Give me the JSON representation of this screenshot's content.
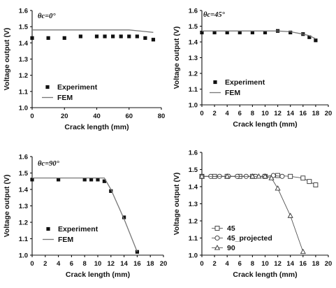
{
  "chart_data": [
    {
      "type": "scatter",
      "annotation": "θc=0°",
      "xlabel": "Crack length (mm)",
      "ylabel": "Voltage output (V)",
      "xlim": [
        0,
        80
      ],
      "ylim": [
        1.0,
        1.6
      ],
      "xticks": [
        0,
        20,
        40,
        60,
        80
      ],
      "yticks": [
        1.0,
        1.1,
        1.2,
        1.3,
        1.4,
        1.5,
        1.6
      ],
      "legend_position": "lower-left",
      "series": [
        {
          "name": "Experiment",
          "kind": "points",
          "marker": "filled-square",
          "x": [
            0,
            10,
            20,
            30,
            40,
            45,
            50,
            55,
            60,
            65,
            70,
            75
          ],
          "y": [
            1.43,
            1.43,
            1.43,
            1.44,
            1.44,
            1.44,
            1.44,
            1.44,
            1.44,
            1.44,
            1.43,
            1.42
          ]
        },
        {
          "name": "FEM",
          "kind": "line",
          "x": [
            0,
            20,
            40,
            60,
            70,
            75
          ],
          "y": [
            1.48,
            1.48,
            1.48,
            1.48,
            1.47,
            1.465
          ]
        }
      ]
    },
    {
      "type": "scatter",
      "annotation": "θc=45°",
      "xlabel": "Crack length (mm)",
      "ylabel": "Voltage output (V)",
      "xlim": [
        0,
        20
      ],
      "ylim": [
        1.0,
        1.6
      ],
      "xticks": [
        0,
        2,
        4,
        6,
        8,
        10,
        12,
        14,
        16,
        18,
        20
      ],
      "yticks": [
        1.0,
        1.1,
        1.2,
        1.3,
        1.4,
        1.5,
        1.6
      ],
      "legend_position": "lower-left",
      "series": [
        {
          "name": "Experiment",
          "kind": "points",
          "marker": "filled-square",
          "x": [
            0,
            2,
            4,
            6,
            8,
            10,
            12,
            14,
            16,
            17,
            18
          ],
          "y": [
            1.46,
            1.46,
            1.46,
            1.46,
            1.46,
            1.46,
            1.47,
            1.46,
            1.45,
            1.43,
            1.41
          ]
        },
        {
          "name": "FEM",
          "kind": "line",
          "x": [
            0,
            10,
            12,
            14,
            16,
            17,
            18
          ],
          "y": [
            1.47,
            1.47,
            1.47,
            1.465,
            1.45,
            1.44,
            1.42
          ]
        }
      ]
    },
    {
      "type": "scatter",
      "annotation": "θc=90°",
      "xlabel": "Crack length (mm)",
      "ylabel": "Voltage output (V)",
      "xlim": [
        0,
        20
      ],
      "ylim": [
        1.0,
        1.6
      ],
      "xticks": [
        0,
        2,
        4,
        6,
        8,
        10,
        12,
        14,
        16,
        18,
        20
      ],
      "yticks": [
        1.0,
        1.1,
        1.2,
        1.3,
        1.4,
        1.5,
        1.6
      ],
      "legend_position": "lower-left",
      "series": [
        {
          "name": "Experiment",
          "kind": "points",
          "marker": "filled-square",
          "x": [
            0,
            4,
            8,
            9,
            10,
            11,
            12,
            14,
            16
          ],
          "y": [
            1.46,
            1.46,
            1.46,
            1.46,
            1.46,
            1.45,
            1.39,
            1.23,
            1.02
          ]
        },
        {
          "name": "FEM",
          "kind": "line",
          "x": [
            0,
            10,
            11,
            12,
            14,
            16
          ],
          "y": [
            1.47,
            1.47,
            1.47,
            1.4,
            1.22,
            1.02
          ]
        }
      ]
    },
    {
      "type": "line",
      "annotation": "",
      "xlabel": "Crack length (mm)",
      "ylabel": "Voltage output (V)",
      "xlim": [
        0,
        20
      ],
      "ylim": [
        1.0,
        1.6
      ],
      "xticks": [
        0,
        2,
        4,
        6,
        8,
        10,
        12,
        14,
        16,
        18,
        20
      ],
      "yticks": [
        1.0,
        1.1,
        1.2,
        1.3,
        1.4,
        1.5,
        1.6
      ],
      "legend_position": "lower-left",
      "series": [
        {
          "name": "45",
          "kind": "line-markers",
          "marker": "open-square",
          "x": [
            0,
            2,
            4,
            6,
            8,
            10,
            12,
            14,
            16,
            17,
            18
          ],
          "y": [
            1.46,
            1.46,
            1.46,
            1.46,
            1.46,
            1.46,
            1.465,
            1.46,
            1.45,
            1.43,
            1.41
          ]
        },
        {
          "name": "45_projected",
          "kind": "line-markers",
          "marker": "open-circle",
          "x": [
            0,
            1.4,
            2.8,
            4.2,
            5.6,
            7,
            8.5,
            9.9,
            11.3,
            12.7
          ],
          "y": [
            1.46,
            1.46,
            1.46,
            1.46,
            1.46,
            1.46,
            1.46,
            1.46,
            1.465,
            1.46
          ]
        },
        {
          "name": "90",
          "kind": "line-markers",
          "marker": "open-triangle",
          "x": [
            0,
            4,
            8,
            9,
            10,
            11,
            12,
            14,
            16
          ],
          "y": [
            1.46,
            1.46,
            1.46,
            1.46,
            1.46,
            1.45,
            1.39,
            1.23,
            1.02
          ]
        }
      ]
    }
  ]
}
